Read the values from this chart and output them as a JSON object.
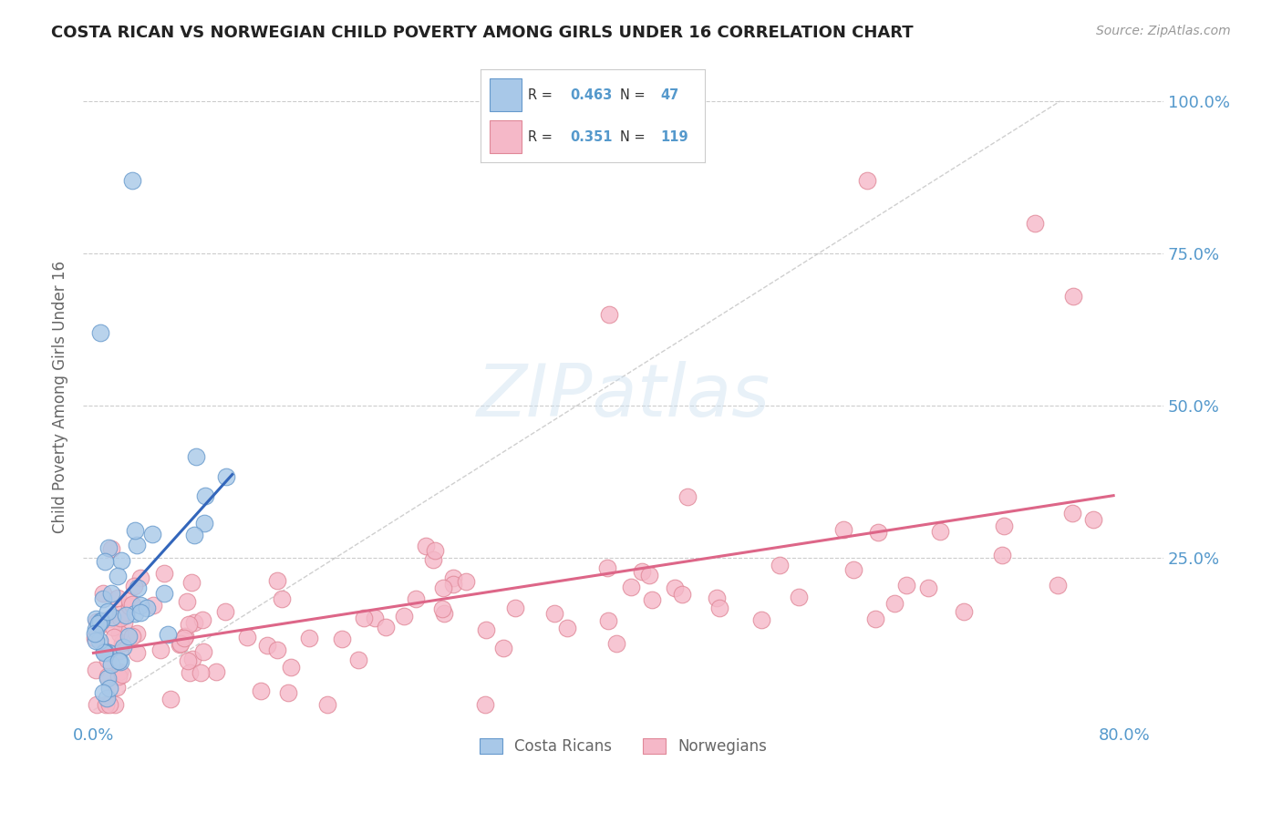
{
  "title": "COSTA RICAN VS NORWEGIAN CHILD POVERTY AMONG GIRLS UNDER 16 CORRELATION CHART",
  "source": "Source: ZipAtlas.com",
  "ylabel_label": "Child Poverty Among Girls Under 16",
  "xlim": [
    0.0,
    0.8
  ],
  "ylim": [
    0.0,
    1.0
  ],
  "cr_color": "#a8c8e8",
  "cr_edge": "#6699cc",
  "nor_color": "#f5b8c8",
  "nor_edge": "#e08898",
  "cr_line_color": "#3366bb",
  "nor_line_color": "#dd6688",
  "ref_line_color": "#bbbbbb",
  "cr_R": 0.463,
  "cr_N": 47,
  "nor_R": 0.351,
  "nor_N": 119,
  "background_color": "#ffffff",
  "grid_color": "#cccccc",
  "axis_color": "#5599cc",
  "title_fontsize": 13,
  "source_fontsize": 10,
  "tick_fontsize": 13,
  "ylabel_fontsize": 12
}
